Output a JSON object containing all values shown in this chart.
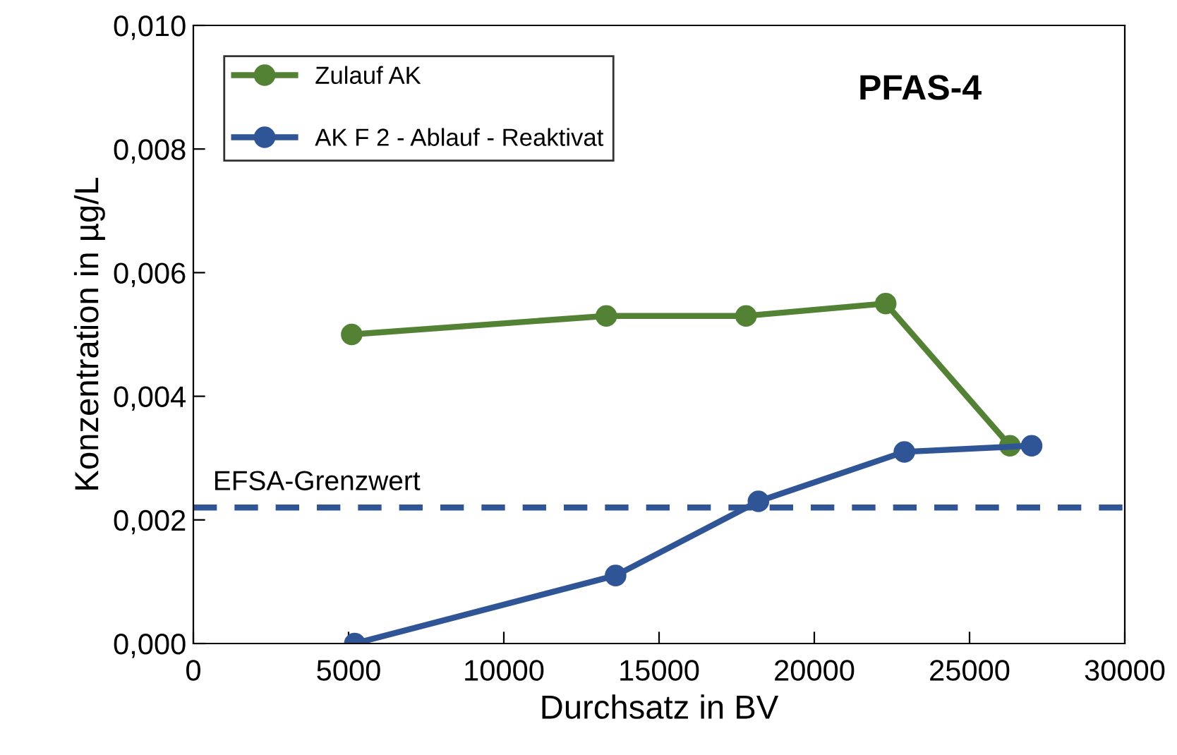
{
  "chart_data": {
    "type": "line",
    "title": "PFAS-4",
    "xlabel": "Durchsatz in BV",
    "ylabel": "Konzentration in µg/L",
    "series": [
      {
        "name": "Zulauf AK",
        "color": "#548235",
        "x": [
          5100,
          13300,
          17800,
          22300,
          26300
        ],
        "values": [
          0.005,
          0.0053,
          0.0053,
          0.0055,
          0.0032
        ]
      },
      {
        "name": "AK F 2 - Ablauf - Reaktivat",
        "color": "#2f5597",
        "x": [
          5200,
          13600,
          18200,
          22900,
          27000
        ],
        "values": [
          0.0,
          0.0011,
          0.0023,
          0.0031,
          0.0032
        ]
      }
    ],
    "ref_lines": [
      {
        "axis": "y",
        "value": 0.0022,
        "label": "EFSA-Grenzwert",
        "color": "#2f5597",
        "line_style": "dashed"
      }
    ],
    "xlim": [
      0,
      30000
    ],
    "xticks": [
      0,
      5000,
      10000,
      15000,
      20000,
      25000,
      30000
    ],
    "ylim": [
      0,
      0.01
    ],
    "yticks": [
      {
        "value": 0,
        "label": "0,000"
      },
      {
        "value": 0.002,
        "label": "0,002"
      },
      {
        "value": 0.004,
        "label": "0,004"
      },
      {
        "value": 0.006,
        "label": "0,006"
      },
      {
        "value": 0.008,
        "label": "0,008"
      },
      {
        "value": 0.01,
        "label": "0,010"
      }
    ],
    "marker": "circle",
    "line_style": "solid",
    "grid": false,
    "legend": "top left"
  }
}
